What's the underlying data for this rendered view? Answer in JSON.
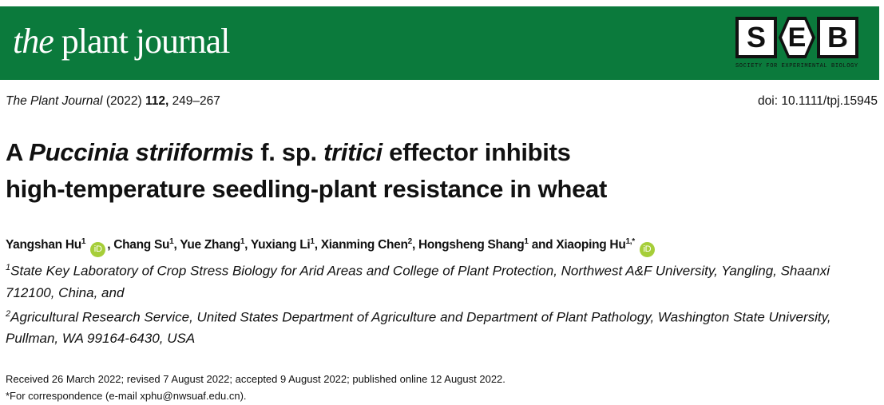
{
  "banner": {
    "journal_prefix": "the",
    "journal_name": "plant journal",
    "logo": {
      "letters": [
        "S",
        "E",
        "B"
      ],
      "tagline": "SOCIETY FOR EXPERIMENTAL BIOLOGY"
    },
    "color": "#0b7a3c"
  },
  "citation": {
    "journal": "The Plant Journal",
    "year": "(2022)",
    "volume": "112,",
    "pages": "249–267",
    "doi": "doi: 10.1111/tpj.15945"
  },
  "title": {
    "a": "A ",
    "italic1": "Puccinia striiformis",
    "mid": " f. sp. ",
    "italic2": "tritici",
    "rest1": " effector inhibits",
    "line2": "high-temperature seedling-plant resistance in wheat"
  },
  "authors": [
    {
      "name": "Yangshan Hu",
      "sup": "1",
      "orcid": true
    },
    {
      "name": "Chang Su",
      "sup": "1"
    },
    {
      "name": "Yue Zhang",
      "sup": "1"
    },
    {
      "name": "Yuxiang Li",
      "sup": "1"
    },
    {
      "name": "Xianming Chen",
      "sup": "2"
    },
    {
      "name": "Hongsheng Shang",
      "sup": "1"
    },
    {
      "name": "Xiaoping Hu",
      "sup": "1,*",
      "orcid": true
    }
  ],
  "author_and": "and",
  "affiliations": [
    {
      "sup": "1",
      "text": "State Key Laboratory of Crop Stress Biology for Arid Areas and College of Plant Protection, Northwest A&F University, Yangling, Shaanxi 712100, China, and"
    },
    {
      "sup": "2",
      "text": "Agricultural Research Service, United States Department of Agriculture and Department of Plant Pathology, Washington State University, Pullman, WA 99164-6430, USA"
    }
  ],
  "received": "Received 26 March 2022; revised 7 August 2022; accepted 9 August 2022; published online 12 August 2022.",
  "correspondence": "*For correspondence (e-mail xphu@nwsuaf.edu.cn).",
  "orcid_label": "iD"
}
